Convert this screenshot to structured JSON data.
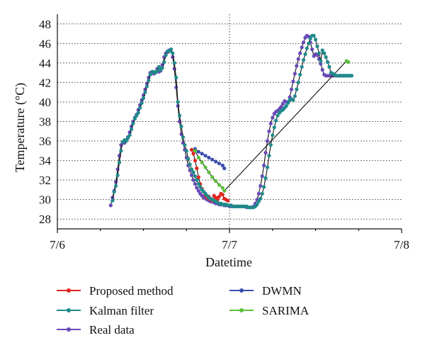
{
  "chart_data": {
    "type": "line",
    "xlabel": "Datetime",
    "ylabel": "Temperature (°C)",
    "x_ticks": [
      {
        "value": 0,
        "label": "7/6"
      },
      {
        "value": 1,
        "label": "7/7"
      },
      {
        "value": 2,
        "label": "7/8"
      }
    ],
    "y_ticks": [
      28,
      30,
      32,
      34,
      36,
      38,
      40,
      42,
      44,
      46,
      48
    ],
    "xlim": [
      0,
      2
    ],
    "ylim": [
      27,
      49
    ],
    "grid": true,
    "legend_position": "bottom",
    "series": [
      {
        "name": "Proposed method",
        "color": "#e0251f",
        "x": [
          0.78,
          0.79,
          0.8,
          0.81,
          0.82,
          0.83,
          0.84,
          0.85,
          0.86,
          0.87,
          0.88,
          0.89,
          0.9,
          0.91,
          0.92,
          0.93,
          0.94,
          0.95,
          0.96,
          0.97,
          0.98,
          0.99
        ],
        "y": [
          35.1,
          34.7,
          34.0,
          33.2,
          32.3,
          31.6,
          31.1,
          30.8,
          30.5,
          30.2,
          30.3,
          30.0,
          29.9,
          30.4,
          30.2,
          30.0,
          30.3,
          30.6,
          30.5,
          30.1,
          30.0,
          29.9
        ]
      },
      {
        "name": "Kalman filter",
        "color": "#1f8a8a",
        "x": [
          0.32,
          0.33,
          0.34,
          0.35,
          0.36,
          0.37,
          0.38,
          0.39,
          0.4,
          0.41,
          0.42,
          0.43,
          0.44,
          0.45,
          0.46,
          0.47,
          0.48,
          0.49,
          0.5,
          0.51,
          0.52,
          0.53,
          0.54,
          0.55,
          0.56,
          0.57,
          0.58,
          0.59,
          0.6,
          0.61,
          0.62,
          0.63,
          0.64,
          0.65,
          0.66,
          0.67,
          0.68,
          0.69,
          0.7,
          0.71,
          0.72,
          0.73,
          0.74,
          0.75,
          0.76,
          0.77,
          0.78,
          0.79,
          0.8,
          0.81,
          0.82,
          0.83,
          0.84,
          0.85,
          0.86,
          0.87,
          0.88,
          0.89,
          0.9,
          0.91,
          0.92,
          0.93,
          0.94,
          0.95,
          0.96,
          0.97,
          0.98,
          0.99,
          1.0,
          1.01,
          1.02,
          1.03,
          1.04,
          1.05,
          1.06,
          1.07,
          1.08,
          1.09,
          1.1,
          1.11,
          1.12,
          1.13,
          1.14,
          1.15,
          1.16,
          1.17,
          1.18,
          1.19,
          1.2,
          1.21,
          1.22,
          1.23,
          1.24,
          1.25,
          1.26,
          1.27,
          1.28,
          1.29,
          1.3,
          1.31,
          1.32,
          1.33,
          1.34,
          1.35,
          1.36,
          1.37,
          1.38,
          1.39,
          1.4,
          1.41,
          1.42,
          1.43,
          1.44,
          1.45,
          1.46,
          1.47,
          1.48,
          1.49,
          1.5,
          1.51,
          1.52,
          1.53,
          1.54,
          1.55,
          1.56,
          1.57,
          1.58,
          1.59,
          1.6,
          1.61,
          1.62,
          1.63,
          1.64,
          1.65,
          1.66,
          1.67,
          1.68,
          1.69,
          1.7,
          1.71
        ],
        "y": [
          29.9,
          30.8,
          31.4,
          32.5,
          33.8,
          35.0,
          35.9,
          36.1,
          36.0,
          36.3,
          36.6,
          37.2,
          37.8,
          38.3,
          38.6,
          38.9,
          39.4,
          39.9,
          40.4,
          41.0,
          41.6,
          42.2,
          42.8,
          43.1,
          43.1,
          43.0,
          43.2,
          43.6,
          43.3,
          43.5,
          44.1,
          44.8,
          45.2,
          45.2,
          45.4,
          45.0,
          44.0,
          42.5,
          40.0,
          38.6,
          37.5,
          36.4,
          35.6,
          35.0,
          34.2,
          33.6,
          33.1,
          32.8,
          32.4,
          32.0,
          31.6,
          31.3,
          31.0,
          30.8,
          30.6,
          30.4,
          30.2,
          30.1,
          30.0,
          29.9,
          29.8,
          29.7,
          29.6,
          29.6,
          29.5,
          29.5,
          29.5,
          29.4,
          29.4,
          29.4,
          29.3,
          29.3,
          29.3,
          29.3,
          29.3,
          29.3,
          29.3,
          29.3,
          29.3,
          29.2,
          29.2,
          29.2,
          29.2,
          29.3,
          29.5,
          29.8,
          30.1,
          30.6,
          31.3,
          32.2,
          33.3,
          34.5,
          35.6,
          36.6,
          37.4,
          38.1,
          38.6,
          38.9,
          39.1,
          39.2,
          39.4,
          39.6,
          39.9,
          40.2,
          40.3,
          40.2,
          40.6,
          41.3,
          42.0,
          42.8,
          43.6,
          44.3,
          44.9,
          45.5,
          46.0,
          46.5,
          46.8,
          46.8,
          46.4,
          45.7,
          45.0,
          44.2,
          45.3,
          45.0,
          44.6,
          44.1,
          43.6,
          43.0,
          42.9,
          42.8,
          42.7,
          42.7,
          42.7,
          42.7,
          42.7,
          42.7,
          42.7,
          42.7,
          42.7,
          42.7
        ]
      },
      {
        "name": "Real data",
        "color": "#6a49b8",
        "x": [
          0.31,
          0.32,
          0.33,
          0.34,
          0.35,
          0.36,
          0.37,
          0.38,
          0.39,
          0.4,
          0.41,
          0.42,
          0.43,
          0.44,
          0.45,
          0.46,
          0.47,
          0.48,
          0.49,
          0.5,
          0.51,
          0.52,
          0.53,
          0.54,
          0.55,
          0.56,
          0.57,
          0.58,
          0.59,
          0.6,
          0.61,
          0.62,
          0.63,
          0.64,
          0.65,
          0.66,
          0.67,
          0.68,
          0.69,
          0.7,
          0.71,
          0.72,
          0.73,
          0.74,
          0.75,
          0.76,
          0.77,
          0.78,
          0.79,
          0.8,
          0.81,
          0.82,
          0.83,
          0.84,
          0.85,
          0.86,
          0.87,
          0.88,
          0.89,
          0.9,
          0.91,
          0.92,
          0.93,
          0.94,
          0.95,
          0.96,
          0.97,
          0.98,
          0.99,
          1.0,
          1.01,
          1.02,
          1.03,
          1.04,
          1.05,
          1.06,
          1.07,
          1.08,
          1.09,
          1.1,
          1.11,
          1.12,
          1.13,
          1.14,
          1.15,
          1.16,
          1.17,
          1.18,
          1.19,
          1.2,
          1.21,
          1.22,
          1.23,
          1.24,
          1.25,
          1.26,
          1.27,
          1.28,
          1.29,
          1.3,
          1.31,
          1.32,
          1.33,
          1.34,
          1.35,
          1.36,
          1.37,
          1.38,
          1.39,
          1.4,
          1.41,
          1.42,
          1.43,
          1.44,
          1.45,
          1.46,
          1.47,
          1.48,
          1.49,
          1.5,
          1.51,
          1.52,
          1.53,
          1.54,
          1.55,
          1.56,
          1.57,
          1.58,
          1.59,
          1.6,
          1.61,
          1.62,
          1.63,
          1.64,
          1.65,
          1.66,
          1.67,
          1.68,
          1.69,
          1.7
        ],
        "y": [
          29.4,
          30.2,
          30.9,
          31.8,
          33.1,
          34.5,
          35.6,
          35.9,
          35.8,
          36.1,
          36.4,
          36.9,
          37.5,
          38.0,
          38.4,
          38.7,
          39.2,
          39.7,
          40.2,
          40.7,
          41.3,
          41.9,
          42.5,
          43.0,
          43.1,
          42.9,
          43.0,
          43.4,
          43.1,
          43.2,
          43.8,
          44.6,
          45.0,
          45.1,
          45.3,
          45.4,
          44.6,
          43.4,
          41.5,
          39.6,
          38.0,
          36.7,
          35.8,
          35.1,
          34.3,
          33.5,
          33.0,
          32.5,
          32.0,
          31.6,
          31.2,
          30.9,
          30.6,
          30.4,
          30.2,
          30.1,
          30.0,
          29.9,
          29.8,
          29.8,
          29.7,
          29.6,
          29.6,
          29.5,
          29.5,
          29.5,
          29.4,
          29.4,
          29.4,
          29.3,
          29.3,
          29.3,
          29.3,
          29.3,
          29.3,
          29.3,
          29.3,
          29.3,
          29.3,
          29.2,
          29.2,
          29.2,
          29.2,
          29.3,
          29.6,
          30.0,
          30.6,
          31.4,
          32.4,
          33.5,
          34.8,
          36.0,
          37.0,
          37.8,
          38.4,
          38.8,
          39.0,
          39.1,
          39.3,
          39.5,
          39.8,
          40.1,
          40.0,
          40.0,
          40.5,
          41.3,
          42.1,
          42.9,
          43.7,
          44.4,
          45.0,
          45.6,
          46.1,
          46.6,
          46.8,
          46.7,
          46.1,
          45.4,
          44.7,
          44.9,
          44.8,
          44.4,
          43.9,
          43.3,
          42.8,
          42.7,
          42.7,
          42.7,
          42.7,
          42.7,
          42.7,
          42.7,
          42.7,
          42.7,
          42.7,
          42.7,
          42.7,
          42.7,
          42.7,
          42.7
        ]
      },
      {
        "name": "DWMN",
        "color": "#3a4fb0",
        "x": [
          0.8,
          0.82,
          0.84,
          0.86,
          0.88,
          0.9,
          0.92,
          0.94,
          0.96,
          0.97
        ],
        "y": [
          35.2,
          34.9,
          34.7,
          34.5,
          34.3,
          34.1,
          33.9,
          33.7,
          33.5,
          33.2
        ]
      },
      {
        "name": "SARIMA",
        "color": "#5cbf3a",
        "x": [
          0.8,
          0.82,
          0.84,
          0.86,
          0.88,
          0.9,
          0.92,
          0.94,
          0.96,
          0.97,
          1.68,
          1.69
        ],
        "y": [
          35.0,
          34.3,
          33.8,
          33.3,
          32.8,
          32.3,
          31.9,
          31.5,
          31.2,
          30.9,
          44.2,
          44.1
        ]
      }
    ]
  }
}
